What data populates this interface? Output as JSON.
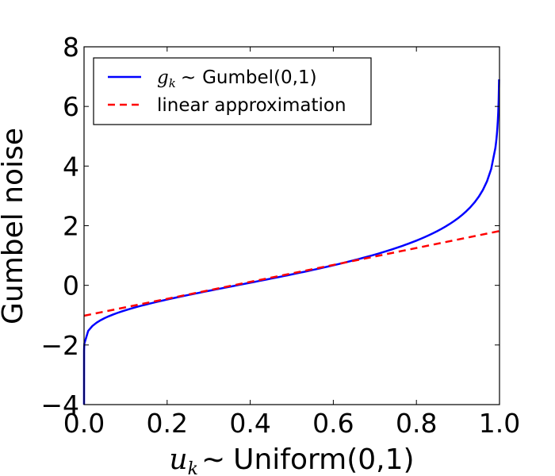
{
  "chart_data": {
    "type": "line",
    "xlabel": {
      "math": "u",
      "math_sub": "k",
      "sim": "∼",
      "text": "Uniform(0,1)"
    },
    "ylabel": "Gumbel noise",
    "xlim": [
      0.0,
      1.0
    ],
    "ylim": [
      -4,
      8
    ],
    "x_ticks": [
      "0.0",
      "0.2",
      "0.4",
      "0.6",
      "0.8",
      "1.0"
    ],
    "y_ticks": [
      "−4",
      "−2",
      "0",
      "2",
      "4",
      "6",
      "8"
    ],
    "grid": false,
    "legend_position": "top-left",
    "series": [
      {
        "name": {
          "math": "g",
          "math_sub": "k",
          "sim": "∼",
          "text": "Gumbel(0,1)"
        },
        "style": "solid",
        "color": "#0000ff",
        "function": "-ln(-ln(u))",
        "x": [
          0.001,
          0.01,
          0.05,
          0.1,
          0.2,
          0.3,
          0.4,
          0.5,
          0.6,
          0.7,
          0.8,
          0.9,
          0.95,
          0.99,
          0.999
        ],
        "y": [
          -1.93,
          -1.53,
          -1.1,
          -0.83,
          -0.48,
          -0.19,
          0.09,
          0.37,
          0.67,
          1.03,
          1.5,
          2.25,
          2.97,
          4.6,
          6.91
        ]
      },
      {
        "name": "linear approximation",
        "style": "dashed",
        "color": "#ff0000",
        "x": [
          0.0,
          1.0
        ],
        "y": [
          -1.02,
          1.82
        ]
      }
    ]
  }
}
